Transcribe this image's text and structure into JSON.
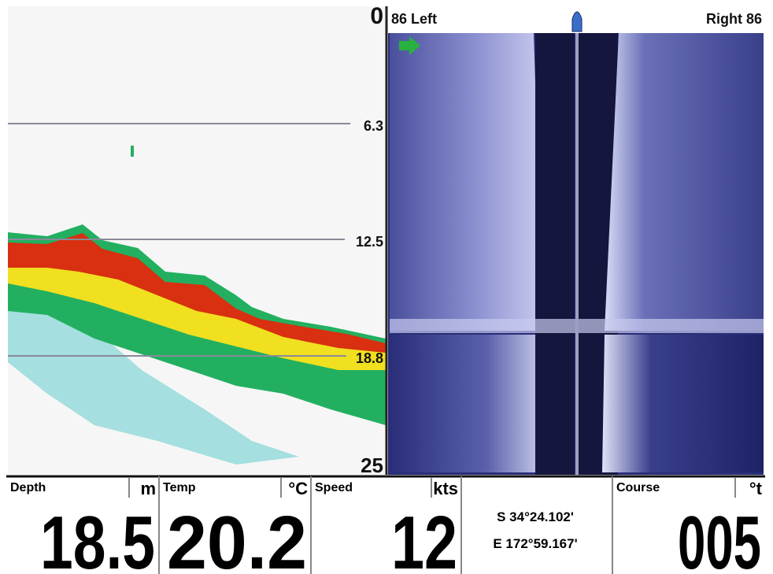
{
  "depth_scale": {
    "labels": [
      "0",
      "6.3",
      "12.5",
      "18.8",
      "25"
    ]
  },
  "side_scan": {
    "left_label": "86 Left",
    "right_label": "Right 86"
  },
  "readouts": [
    {
      "label": "Depth",
      "unit": "m",
      "value": "18.5"
    },
    {
      "label": "Temp",
      "unit": "°C",
      "value": "20.2"
    },
    {
      "label": "Speed",
      "unit": "kts",
      "value": "12"
    },
    {
      "label": "Course",
      "unit": "°t",
      "value": "005"
    }
  ],
  "position": {
    "latitude": "S 34°24.102'",
    "longitude": "E 172°59.167'"
  }
}
